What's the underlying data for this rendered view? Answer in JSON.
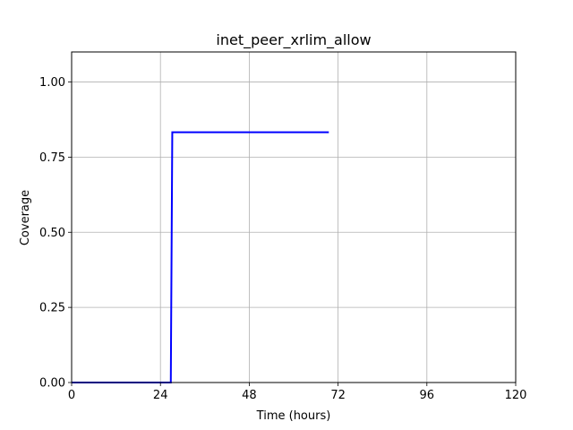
{
  "chart_data": {
    "type": "line",
    "title": "inet_peer_xrlim_allow",
    "xlabel": "Time (hours)",
    "ylabel": "Coverage",
    "xlim": [
      0,
      120
    ],
    "ylim": [
      0,
      1.1
    ],
    "xticks": [
      0,
      24,
      48,
      72,
      96,
      120
    ],
    "yticks": [
      0.0,
      0.25,
      0.5,
      0.75,
      1.0
    ],
    "xtick_labels": [
      "0",
      "24",
      "48",
      "72",
      "96",
      "120"
    ],
    "ytick_labels": [
      "0.00",
      "0.25",
      "0.50",
      "0.75",
      "1.00"
    ],
    "grid": true,
    "series": [
      {
        "color": "#0000ff",
        "x": [
          0,
          26.8,
          27.2,
          69.5
        ],
        "y": [
          0.0,
          0.0,
          0.833,
          0.833
        ]
      }
    ]
  }
}
